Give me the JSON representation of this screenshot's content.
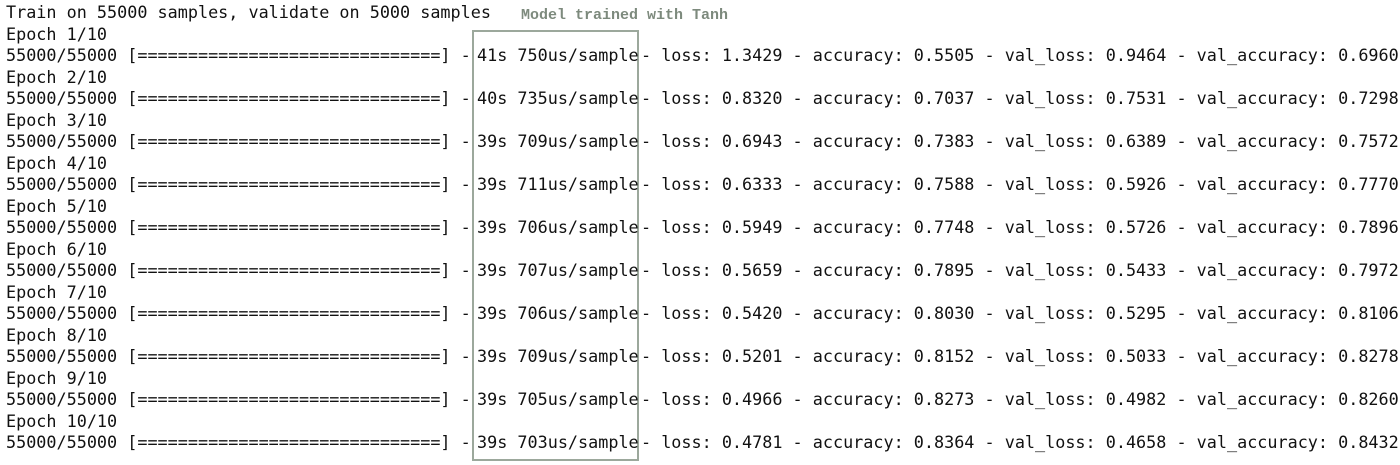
{
  "header": "Train on 55000 samples, validate on 5000 samples",
  "annotation": "Model trained with Tanh",
  "epochs": [
    {
      "label": "Epoch 1/10",
      "progress": "55000/55000 [==============================] -",
      "timing": "41s 750us/sample",
      "metrics": "- loss: 1.3429 - accuracy: 0.5505 - val_loss: 0.9464 - val_accuracy: 0.6960"
    },
    {
      "label": "Epoch 2/10",
      "progress": "55000/55000 [==============================] -",
      "timing": "40s 735us/sample",
      "metrics": "- loss: 0.8320 - accuracy: 0.7037 - val_loss: 0.7531 - val_accuracy: 0.7298"
    },
    {
      "label": "Epoch 3/10",
      "progress": "55000/55000 [==============================] -",
      "timing": "39s 709us/sample",
      "metrics": "- loss: 0.6943 - accuracy: 0.7383 - val_loss: 0.6389 - val_accuracy: 0.7572"
    },
    {
      "label": "Epoch 4/10",
      "progress": "55000/55000 [==============================] -",
      "timing": "39s 711us/sample",
      "metrics": "- loss: 0.6333 - accuracy: 0.7588 - val_loss: 0.5926 - val_accuracy: 0.7770"
    },
    {
      "label": "Epoch 5/10",
      "progress": "55000/55000 [==============================] -",
      "timing": "39s 706us/sample",
      "metrics": "- loss: 0.5949 - accuracy: 0.7748 - val_loss: 0.5726 - val_accuracy: 0.7896"
    },
    {
      "label": "Epoch 6/10",
      "progress": "55000/55000 [==============================] -",
      "timing": "39s 707us/sample",
      "metrics": "- loss: 0.5659 - accuracy: 0.7895 - val_loss: 0.5433 - val_accuracy: 0.7972"
    },
    {
      "label": "Epoch 7/10",
      "progress": "55000/55000 [==============================] -",
      "timing": "39s 706us/sample",
      "metrics": "- loss: 0.5420 - accuracy: 0.8030 - val_loss: 0.5295 - val_accuracy: 0.8106"
    },
    {
      "label": "Epoch 8/10",
      "progress": "55000/55000 [==============================] -",
      "timing": "39s 709us/sample",
      "metrics": "- loss: 0.5201 - accuracy: 0.8152 - val_loss: 0.5033 - val_accuracy: 0.8278"
    },
    {
      "label": "Epoch 9/10",
      "progress": "55000/55000 [==============================] -",
      "timing": "39s 705us/sample",
      "metrics": "- loss: 0.4966 - accuracy: 0.8273 - val_loss: 0.4982 - val_accuracy: 0.8260"
    },
    {
      "label": "Epoch 10/10",
      "progress": "55000/55000 [==============================] -",
      "timing": "39s 703us/sample",
      "metrics": "- loss: 0.4781 - accuracy: 0.8364 - val_loss: 0.4658 - val_accuracy: 0.8432"
    }
  ]
}
